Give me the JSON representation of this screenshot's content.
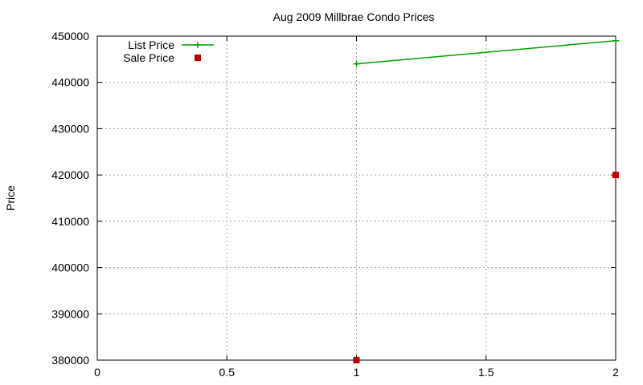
{
  "chart_data": {
    "type": "line",
    "title": "Aug 2009 Millbrae Condo Prices",
    "xlabel": "",
    "ylabel": "Price",
    "xlim": [
      0,
      2
    ],
    "ylim": [
      380000,
      450000
    ],
    "xticks": [
      0,
      0.5,
      1,
      1.5,
      2
    ],
    "xtick_labels": [
      "0",
      "0.5",
      "1",
      "1.5",
      "2"
    ],
    "yticks": [
      380000,
      390000,
      400000,
      410000,
      420000,
      430000,
      440000,
      450000
    ],
    "ytick_labels": [
      "380000",
      "390000",
      "400000",
      "410000",
      "420000",
      "430000",
      "440000",
      "450000"
    ],
    "grid": true,
    "legend_position": "top-left",
    "series": [
      {
        "name": "List Price",
        "style": "linespoints",
        "marker": "plus",
        "color": "#00a000",
        "x": [
          1,
          2
        ],
        "y": [
          444000,
          449000
        ]
      },
      {
        "name": "Sale Price",
        "style": "points",
        "marker": "square",
        "color": "#c00000",
        "x": [
          1,
          2
        ],
        "y": [
          380000,
          420000
        ]
      }
    ]
  }
}
